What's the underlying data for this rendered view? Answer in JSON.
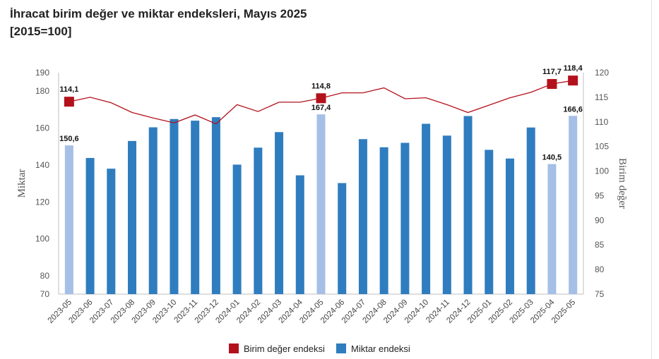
{
  "title": "İhracat birim değer ve miktar endeksleri, Mayıs 2025",
  "subtitle": "[2015=100]",
  "colors": {
    "bar": "#2f7dbf",
    "bar_highlight": "#a5bfe6",
    "line": "#b3111c",
    "marker": "#b3111c",
    "axis": "#bfbfbf"
  },
  "chart_data": {
    "type": "bar+line",
    "categories": [
      "2023-05",
      "2023-06",
      "2023-07",
      "2023-08",
      "2023-09",
      "2023-10",
      "2023-11",
      "2023-12",
      "2024-01",
      "2024-02",
      "2024-03",
      "2024-04",
      "2024-05",
      "2024-06",
      "2024-07",
      "2024-08",
      "2024-09",
      "2024-10",
      "2024-11",
      "2024-12",
      "2025-01",
      "2025-02",
      "2025-03",
      "2025-04",
      "2025-05"
    ],
    "highlight_indices": [
      0,
      12,
      23,
      24
    ],
    "series": [
      {
        "name": "Miktar endeksi",
        "type": "bar",
        "axis": "left",
        "values": [
          150.6,
          143.8,
          138.0,
          153.0,
          160.4,
          164.9,
          164.0,
          165.9,
          140.2,
          149.4,
          157.8,
          134.4,
          167.4,
          130.2,
          154.0,
          149.6,
          152.0,
          162.3,
          155.9,
          166.5,
          148.2,
          143.5,
          160.3,
          140.5,
          166.6
        ],
        "data_labels": {
          "0": "150,6",
          "12": "167,4",
          "23": "140,5",
          "24": "166,6"
        }
      },
      {
        "name": "Birim değer endeksi",
        "type": "line",
        "axis": "right",
        "values": [
          114.1,
          115.0,
          113.9,
          111.9,
          110.8,
          109.8,
          111.4,
          109.6,
          113.5,
          112.1,
          114.0,
          114.0,
          114.8,
          115.9,
          115.9,
          116.9,
          114.7,
          114.9,
          113.5,
          111.9,
          113.4,
          114.9,
          116.0,
          117.7,
          118.4
        ],
        "marker_indices": [
          0,
          12,
          23,
          24
        ],
        "data_labels": {
          "0": "114,1",
          "12": "114,8",
          "23": "117,7",
          "24": "118,4"
        }
      }
    ],
    "left_axis": {
      "label": "Miktar",
      "ticks": [
        70,
        80,
        100,
        120,
        140,
        160,
        180,
        190
      ],
      "tick_labels": [
        "70",
        "80",
        "100",
        "120",
        "140",
        "160",
        "180",
        "190"
      ]
    },
    "right_axis": {
      "label": "Birim değer",
      "ticks": [
        75,
        80,
        85,
        90,
        95,
        100,
        105,
        110,
        115,
        120
      ],
      "tick_labels": [
        "75",
        "80",
        "85",
        "90",
        "95",
        "100",
        "105",
        "110",
        "115",
        "120"
      ]
    },
    "legend": {
      "placement": "bottom",
      "items": [
        "Birim değer endeksi",
        "Miktar endeksi"
      ]
    }
  }
}
